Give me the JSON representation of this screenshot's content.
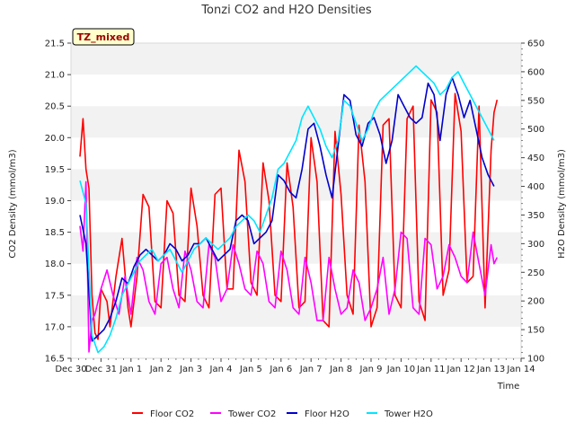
{
  "chart_data": {
    "type": "line",
    "title": "Tonzi CO2 and H2O Densities",
    "badge": "TZ_mixed",
    "xlabel": "Time",
    "ylabel_left": "CO2 Density (mmol/m3)",
    "ylabel_right": "H2O Density (mmol/m3)",
    "ylim_left": [
      16.5,
      21.5
    ],
    "ylim_right": [
      100,
      650
    ],
    "xlim": [
      0,
      15
    ],
    "grid": "horizontal-bands",
    "legend_placement": "bottom-center",
    "x_ticks": [
      {
        "value": 0,
        "label": "Dec 30"
      },
      {
        "value": 1,
        "label": "Dec 31"
      },
      {
        "value": 2,
        "label": "Jan 1"
      },
      {
        "value": 3,
        "label": "Jan 2"
      },
      {
        "value": 4,
        "label": "Jan 3"
      },
      {
        "value": 5,
        "label": "Jan 4"
      },
      {
        "value": 6,
        "label": "Jan 5"
      },
      {
        "value": 7,
        "label": "Jan 6"
      },
      {
        "value": 8,
        "label": "Jan 7"
      },
      {
        "value": 9,
        "label": "Jan 8"
      },
      {
        "value": 10,
        "label": "Jan 9"
      },
      {
        "value": 11,
        "label": "Jan 10"
      },
      {
        "value": 12,
        "label": "Jan 11"
      },
      {
        "value": 13,
        "label": "Jan 12"
      },
      {
        "value": 14,
        "label": "Jan 13"
      },
      {
        "value": 15,
        "label": "Jan 14"
      }
    ],
    "y_ticks_left": [
      "16.5",
      "17.0",
      "17.5",
      "18.0",
      "18.5",
      "19.0",
      "19.5",
      "20.0",
      "20.5",
      "21.0",
      "21.5"
    ],
    "y_ticks_right": [
      "100",
      "150",
      "200",
      "250",
      "300",
      "350",
      "400",
      "450",
      "500",
      "550",
      "600",
      "650"
    ],
    "series": [
      {
        "name": "Floor CO2",
        "axis": "left",
        "color": "#ff0000",
        "x": [
          0.3,
          0.4,
          0.5,
          0.6,
          0.7,
          0.8,
          0.9,
          1.0,
          1.2,
          1.3,
          1.5,
          1.7,
          1.9,
          2.0,
          2.2,
          2.4,
          2.6,
          2.8,
          3.0,
          3.2,
          3.4,
          3.6,
          3.8,
          4.0,
          4.2,
          4.4,
          4.6,
          4.8,
          5.0,
          5.2,
          5.4,
          5.6,
          5.8,
          6.0,
          6.2,
          6.4,
          6.6,
          6.8,
          7.0,
          7.2,
          7.4,
          7.6,
          7.8,
          8.0,
          8.2,
          8.4,
          8.6,
          8.8,
          9.0,
          9.2,
          9.4,
          9.6,
          9.8,
          10.0,
          10.2,
          10.4,
          10.6,
          10.8,
          11.0,
          11.2,
          11.4,
          11.6,
          11.8,
          12.0,
          12.2,
          12.4,
          12.6,
          12.8,
          13.0,
          13.2,
          13.4,
          13.6,
          13.8,
          14.0,
          14.1,
          14.2
        ],
        "values": [
          19.7,
          20.3,
          19.5,
          19.2,
          17.5,
          16.9,
          16.8,
          17.6,
          17.4,
          17.0,
          17.8,
          18.4,
          17.3,
          17.0,
          17.8,
          19.1,
          18.9,
          17.4,
          17.3,
          19.0,
          18.8,
          17.5,
          17.4,
          19.2,
          18.6,
          17.5,
          17.3,
          19.1,
          19.2,
          17.6,
          17.6,
          19.8,
          19.3,
          17.7,
          17.5,
          19.6,
          19.0,
          17.5,
          17.4,
          19.6,
          18.9,
          17.3,
          17.4,
          20.0,
          19.3,
          17.1,
          17.0,
          20.1,
          19.1,
          17.5,
          17.2,
          20.2,
          19.3,
          17.0,
          17.3,
          20.2,
          20.3,
          17.5,
          17.3,
          20.3,
          20.5,
          17.4,
          17.1,
          20.6,
          20.4,
          17.5,
          17.9,
          20.7,
          20.1,
          17.7,
          17.8,
          20.5,
          17.3,
          19.8,
          20.4,
          20.6
        ]
      },
      {
        "name": "Tower CO2",
        "axis": "left",
        "color": "#ff00ff",
        "x": [
          0.3,
          0.4,
          0.5,
          0.6,
          0.7,
          0.8,
          0.9,
          1.0,
          1.2,
          1.4,
          1.6,
          1.8,
          2.0,
          2.2,
          2.4,
          2.6,
          2.8,
          3.0,
          3.2,
          3.4,
          3.6,
          3.8,
          4.0,
          4.2,
          4.4,
          4.6,
          4.8,
          5.0,
          5.2,
          5.4,
          5.6,
          5.8,
          6.0,
          6.2,
          6.4,
          6.6,
          6.8,
          7.0,
          7.2,
          7.4,
          7.6,
          7.8,
          8.0,
          8.2,
          8.4,
          8.6,
          8.8,
          9.0,
          9.2,
          9.4,
          9.6,
          9.8,
          10.0,
          10.2,
          10.4,
          10.6,
          10.8,
          11.0,
          11.2,
          11.4,
          11.6,
          11.8,
          12.0,
          12.2,
          12.4,
          12.6,
          12.8,
          13.0,
          13.2,
          13.4,
          13.6,
          13.8,
          14.0,
          14.1,
          14.2
        ],
        "values": [
          18.6,
          18.2,
          19.3,
          16.6,
          17.1,
          17.2,
          17.4,
          17.6,
          17.9,
          17.5,
          17.2,
          17.8,
          17.2,
          18.1,
          17.9,
          17.4,
          17.2,
          18.0,
          18.1,
          17.6,
          17.3,
          18.2,
          17.9,
          17.4,
          17.3,
          18.3,
          18.1,
          17.4,
          17.6,
          18.3,
          18.0,
          17.6,
          17.5,
          18.2,
          18.0,
          17.4,
          17.3,
          18.2,
          17.9,
          17.3,
          17.2,
          18.1,
          17.7,
          17.1,
          17.1,
          18.1,
          17.6,
          17.2,
          17.3,
          17.9,
          17.7,
          17.1,
          17.3,
          17.6,
          18.1,
          17.2,
          17.6,
          18.5,
          18.4,
          17.3,
          17.2,
          18.4,
          18.3,
          17.6,
          17.8,
          18.3,
          18.1,
          17.8,
          17.7,
          18.5,
          18.0,
          17.5,
          18.3,
          18.0,
          18.1
        ]
      },
      {
        "name": "Floor H2O",
        "axis": "right",
        "color": "#0000cc",
        "x": [
          0.3,
          0.5,
          0.7,
          0.9,
          1.1,
          1.3,
          1.5,
          1.7,
          1.9,
          2.1,
          2.3,
          2.5,
          2.7,
          2.9,
          3.1,
          3.3,
          3.5,
          3.7,
          3.9,
          4.1,
          4.3,
          4.5,
          4.7,
          4.9,
          5.1,
          5.3,
          5.5,
          5.7,
          5.9,
          6.1,
          6.3,
          6.5,
          6.7,
          6.9,
          7.1,
          7.3,
          7.5,
          7.7,
          7.9,
          8.1,
          8.3,
          8.5,
          8.7,
          8.9,
          9.1,
          9.3,
          9.5,
          9.7,
          9.9,
          10.1,
          10.3,
          10.5,
          10.7,
          10.9,
          11.1,
          11.3,
          11.5,
          11.7,
          11.9,
          12.1,
          12.3,
          12.5,
          12.7,
          12.9,
          13.1,
          13.3,
          13.5,
          13.7,
          13.9,
          14.1
        ],
        "values": [
          350,
          300,
          130,
          140,
          150,
          170,
          200,
          240,
          230,
          260,
          280,
          290,
          280,
          270,
          280,
          300,
          290,
          270,
          280,
          300,
          300,
          310,
          290,
          270,
          280,
          290,
          340,
          350,
          340,
          300,
          310,
          320,
          340,
          420,
          410,
          390,
          380,
          430,
          500,
          510,
          470,
          420,
          380,
          470,
          560,
          550,
          490,
          470,
          510,
          520,
          490,
          440,
          480,
          560,
          540,
          520,
          510,
          520,
          580,
          560,
          480,
          560,
          590,
          560,
          520,
          550,
          500,
          450,
          420,
          400
        ]
      },
      {
        "name": "Tower H2O",
        "axis": "right",
        "color": "#00e5ff",
        "x": [
          0.3,
          0.5,
          0.7,
          0.9,
          1.1,
          1.3,
          1.5,
          1.7,
          1.9,
          2.1,
          2.3,
          2.5,
          2.7,
          2.9,
          3.1,
          3.3,
          3.5,
          3.7,
          3.9,
          4.1,
          4.3,
          4.5,
          4.7,
          4.9,
          5.1,
          5.3,
          5.5,
          5.7,
          5.9,
          6.1,
          6.3,
          6.5,
          6.7,
          6.9,
          7.1,
          7.3,
          7.5,
          7.7,
          7.9,
          8.1,
          8.3,
          8.5,
          8.7,
          8.9,
          9.1,
          9.3,
          9.5,
          9.7,
          9.9,
          10.1,
          10.3,
          10.5,
          10.7,
          10.9,
          11.1,
          11.3,
          11.5,
          11.7,
          11.9,
          12.1,
          12.3,
          12.5,
          12.7,
          12.9,
          13.1,
          13.3,
          13.5,
          13.7,
          13.9,
          14.1
        ],
        "values": [
          410,
          370,
          140,
          110,
          120,
          140,
          170,
          210,
          230,
          250,
          270,
          280,
          290,
          270,
          280,
          290,
          270,
          250,
          270,
          290,
          300,
          310,
          300,
          290,
          300,
          310,
          330,
          340,
          350,
          340,
          320,
          350,
          380,
          430,
          440,
          460,
          480,
          520,
          540,
          520,
          500,
          470,
          450,
          480,
          550,
          540,
          510,
          480,
          500,
          530,
          550,
          560,
          570,
          580,
          590,
          600,
          610,
          600,
          590,
          580,
          560,
          570,
          590,
          600,
          580,
          560,
          540,
          520,
          500,
          480
        ]
      }
    ]
  }
}
